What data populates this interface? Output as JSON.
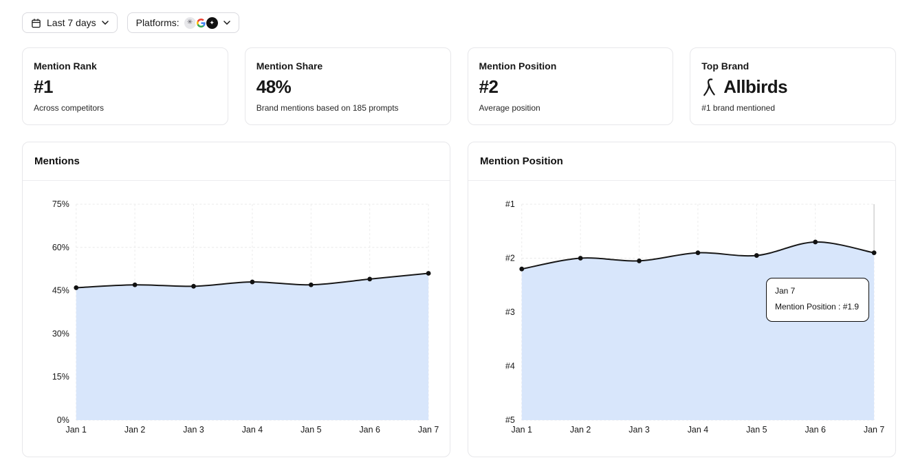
{
  "filters": {
    "date_range_label": "Last 7 days",
    "platforms_label": "Platforms:",
    "platform_icons": [
      "openai-icon",
      "google-icon",
      "platform-icon-dark"
    ]
  },
  "stats": [
    {
      "title": "Mention Rank",
      "value": "#1",
      "subtitle": "Across competitors"
    },
    {
      "title": "Mention Share",
      "value": "48%",
      "subtitle": "Brand mentions based on 185 prompts"
    },
    {
      "title": "Mention Position",
      "value": "#2",
      "subtitle": "Average position"
    },
    {
      "title": "Top Brand",
      "value": "Allbirds",
      "subtitle": "#1 brand mentioned",
      "logo": "allbirds-logo"
    }
  ],
  "chart_data": [
    {
      "type": "area",
      "title": "Mentions",
      "categories": [
        "Jan 1",
        "Jan 2",
        "Jan 3",
        "Jan 4",
        "Jan 5",
        "Jan 6",
        "Jan 7"
      ],
      "values": [
        46,
        47,
        46.5,
        48,
        47,
        49,
        51
      ],
      "unit": "%",
      "xlabel": "",
      "ylabel": "",
      "ylim": [
        0,
        75
      ],
      "inverted": false,
      "yticks": [
        {
          "label": "0%",
          "value": 0
        },
        {
          "label": "15%",
          "value": 15
        },
        {
          "label": "30%",
          "value": 30
        },
        {
          "label": "45%",
          "value": 45
        },
        {
          "label": "60%",
          "value": 60
        },
        {
          "label": "75%",
          "value": 75
        }
      ],
      "grid": true,
      "legend": "none",
      "line_color": "#171717",
      "fill_color": "#d8e6fb"
    },
    {
      "type": "area",
      "title": "Mention Position",
      "categories": [
        "Jan 1",
        "Jan 2",
        "Jan 3",
        "Jan 4",
        "Jan 5",
        "Jan 6",
        "Jan 7"
      ],
      "values": [
        2.2,
        2.0,
        2.05,
        1.9,
        1.95,
        1.7,
        1.9
      ],
      "unit": "rank",
      "xlabel": "",
      "ylabel": "",
      "ylim": [
        1,
        5
      ],
      "inverted": true,
      "yticks": [
        {
          "label": "#1",
          "value": 1
        },
        {
          "label": "#2",
          "value": 2
        },
        {
          "label": "#3",
          "value": 3
        },
        {
          "label": "#4",
          "value": 4
        },
        {
          "label": "#5",
          "value": 5
        }
      ],
      "grid": true,
      "legend": "none",
      "line_color": "#171717",
      "fill_color": "#d8e6fb",
      "hover_index": 6,
      "tooltip": {
        "title": "Jan 7",
        "text": "Mention Position : #1.9"
      }
    }
  ]
}
